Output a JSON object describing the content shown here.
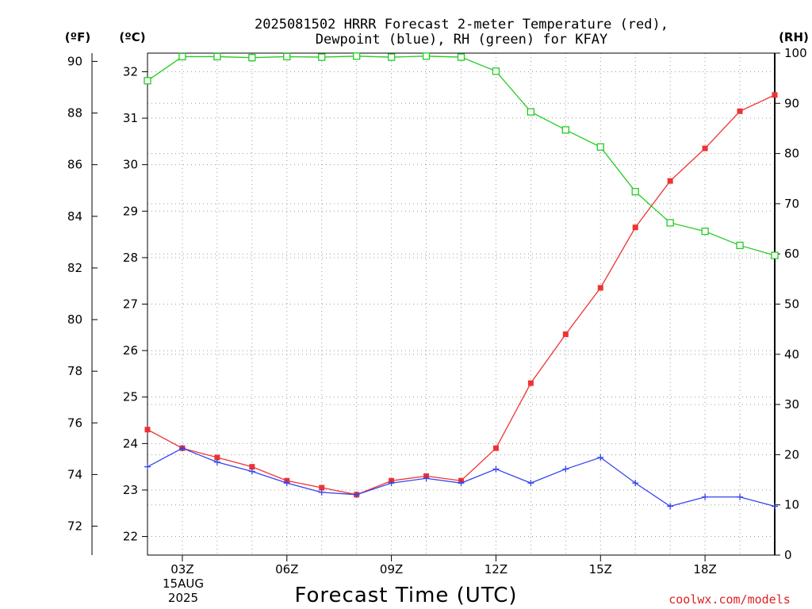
{
  "chart_data": {
    "type": "line",
    "title_line1": "2025081502 HRRR Forecast 2-meter Temperature (red),",
    "title_line2": "Dewpoint (blue), RH (green) for KFAY",
    "xlabel": "Forecast Time (UTC)",
    "credit": "coolwx.com/models",
    "units": {
      "fahrenheit": "(ºF)",
      "celsius": "(ºC)",
      "rh": "(RH)"
    },
    "x_hours": [
      2,
      3,
      4,
      5,
      6,
      7,
      8,
      9,
      10,
      11,
      12,
      13,
      14,
      15,
      16,
      17,
      18,
      19,
      20
    ],
    "xlim": [
      2,
      20
    ],
    "x_ticks": [
      {
        "hour": 3,
        "label": "03Z"
      },
      {
        "hour": 6,
        "label": "06Z"
      },
      {
        "hour": 9,
        "label": "09Z"
      },
      {
        "hour": 12,
        "label": "12Z"
      },
      {
        "hour": 15,
        "label": "15Z"
      },
      {
        "hour": 18,
        "label": "18Z"
      }
    ],
    "date_label_line1": "15AUG",
    "date_label_line2": "2025",
    "celsius_axis": {
      "ylim": [
        21.6,
        32.4
      ],
      "ticks": [
        22,
        23,
        24,
        25,
        26,
        27,
        28,
        29,
        30,
        31,
        32
      ]
    },
    "fahrenheit_axis": {
      "ticks": [
        72,
        74,
        76,
        78,
        80,
        82,
        84,
        86,
        88,
        90
      ]
    },
    "rh_axis": {
      "ylim": [
        0,
        100
      ],
      "ticks": [
        0,
        10,
        20,
        30,
        40,
        50,
        60,
        70,
        80,
        90,
        100
      ]
    },
    "grid": true,
    "series": [
      {
        "name": "Temperature",
        "axis": "celsius",
        "color": "#ee3333",
        "marker": "filled-square",
        "values": [
          24.3,
          23.9,
          23.7,
          23.5,
          23.2,
          23.05,
          22.9,
          23.2,
          23.3,
          23.2,
          23.9,
          25.3,
          26.35,
          27.35,
          28.65,
          29.65,
          30.35,
          31.15,
          31.5
        ]
      },
      {
        "name": "Dewpoint",
        "axis": "celsius",
        "color": "#3344ee",
        "marker": "plus",
        "values": [
          23.5,
          23.9,
          23.6,
          23.4,
          23.15,
          22.95,
          22.9,
          23.15,
          23.25,
          23.15,
          23.45,
          23.15,
          23.45,
          23.7,
          23.15,
          22.65,
          22.85,
          22.85,
          22.65
        ]
      },
      {
        "name": "RH",
        "axis": "rh",
        "color": "#22cc22",
        "marker": "open-square",
        "values": [
          94.5,
          99.3,
          99.3,
          99.1,
          99.3,
          99.2,
          99.4,
          99.2,
          99.4,
          99.2,
          96.4,
          88.3,
          84.7,
          81.3,
          72.4,
          66.2,
          64.5,
          61.7,
          59.7
        ]
      }
    ]
  }
}
